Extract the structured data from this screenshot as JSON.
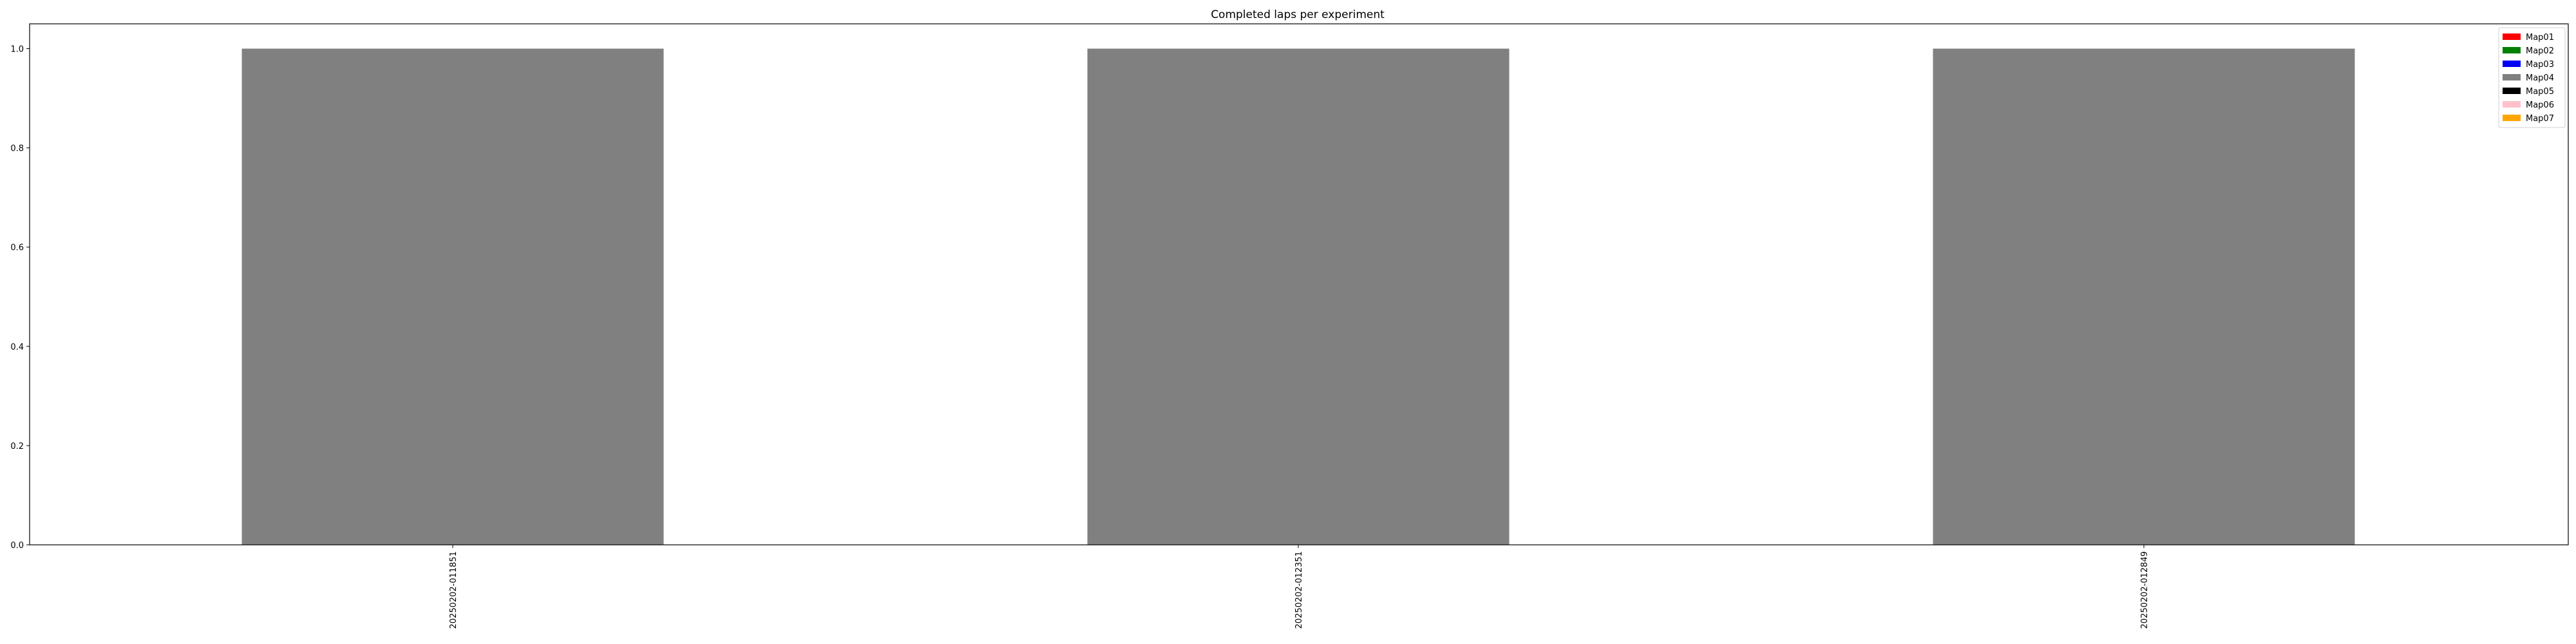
{
  "chart_data": {
    "type": "bar",
    "title": "Completed laps per experiment",
    "xlabel": "",
    "ylabel": "",
    "categories": [
      "20250202-011851",
      "20250202-012351",
      "20250202-012849"
    ],
    "series": [
      {
        "name": "Map01",
        "color": "#ff0000",
        "values": [
          0,
          0,
          0
        ]
      },
      {
        "name": "Map02",
        "color": "#008000",
        "values": [
          0,
          0,
          0
        ]
      },
      {
        "name": "Map03",
        "color": "#0000ff",
        "values": [
          0,
          0,
          0
        ]
      },
      {
        "name": "Map04",
        "color": "#808080",
        "values": [
          1,
          1,
          1
        ]
      },
      {
        "name": "Map05",
        "color": "#000000",
        "values": [
          0,
          0,
          0
        ]
      },
      {
        "name": "Map06",
        "color": "#ffc0cb",
        "values": [
          0,
          0,
          0
        ]
      },
      {
        "name": "Map07",
        "color": "#ffa500",
        "values": [
          0,
          0,
          0
        ]
      }
    ],
    "stacked": true,
    "ylim": [
      0,
      1.05
    ],
    "yticks": [
      "0.0",
      "0.2",
      "0.4",
      "0.6",
      "0.8",
      "1.0"
    ],
    "grid": false,
    "legend_position": "top-right"
  }
}
